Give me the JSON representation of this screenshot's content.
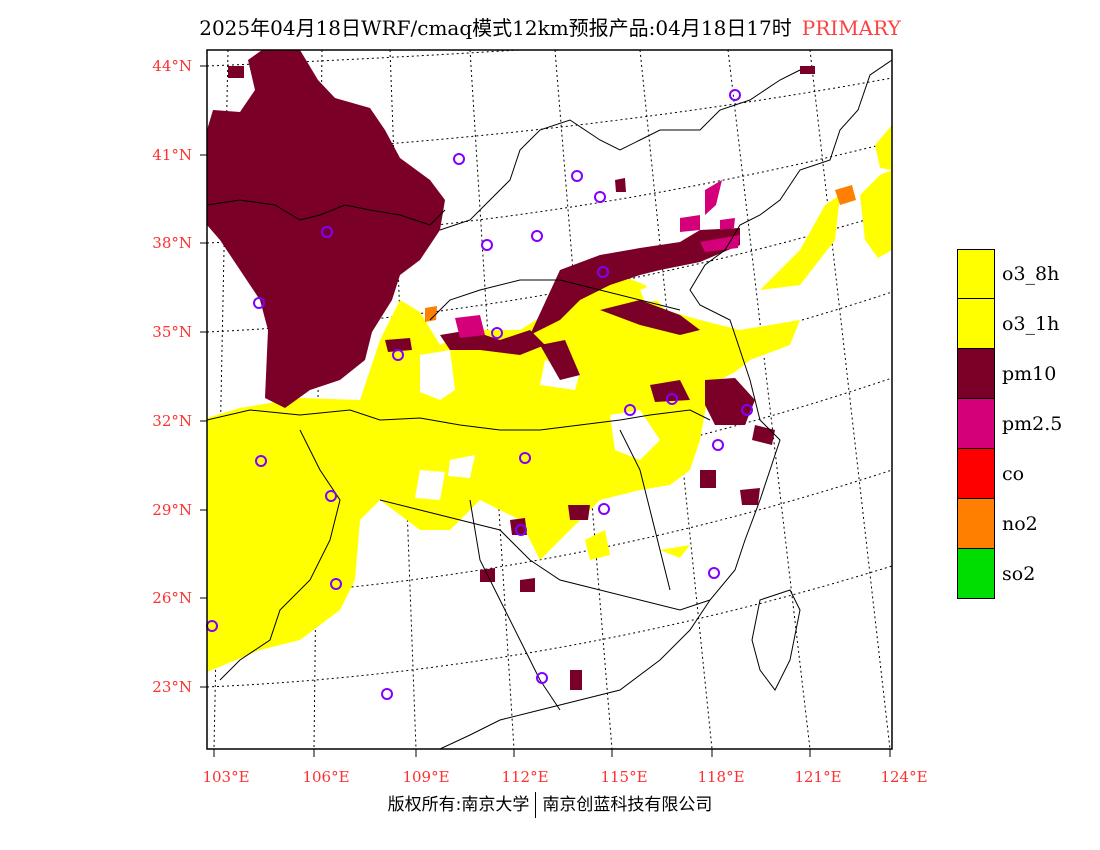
{
  "title": {
    "main": "2025年04月18日WRF/cmaq模式12km预报产品:04月18日17时",
    "tag": "PRIMARY"
  },
  "map": {
    "lat_labels": [
      "44°N",
      "41°N",
      "38°N",
      "35°N",
      "32°N",
      "29°N",
      "26°N",
      "23°N"
    ],
    "lon_labels": [
      "103°E",
      "106°E",
      "109°E",
      "112°E",
      "115°E",
      "118°E",
      "121°E",
      "124°E"
    ]
  },
  "legend": {
    "items": [
      {
        "label": "o3_8h",
        "color": "#ffff00"
      },
      {
        "label": "o3_1h",
        "color": "#ffff00"
      },
      {
        "label": "pm10",
        "color": "#7a0028"
      },
      {
        "label": "pm2.5",
        "color": "#d4007a"
      },
      {
        "label": "co",
        "color": "#ff0000"
      },
      {
        "label": "no2",
        "color": "#ff8000"
      },
      {
        "label": "so2",
        "color": "#00dd00"
      }
    ]
  },
  "footer": {
    "left": "版权所有:南京大学",
    "right": "南京创蓝科技有限公司"
  }
}
